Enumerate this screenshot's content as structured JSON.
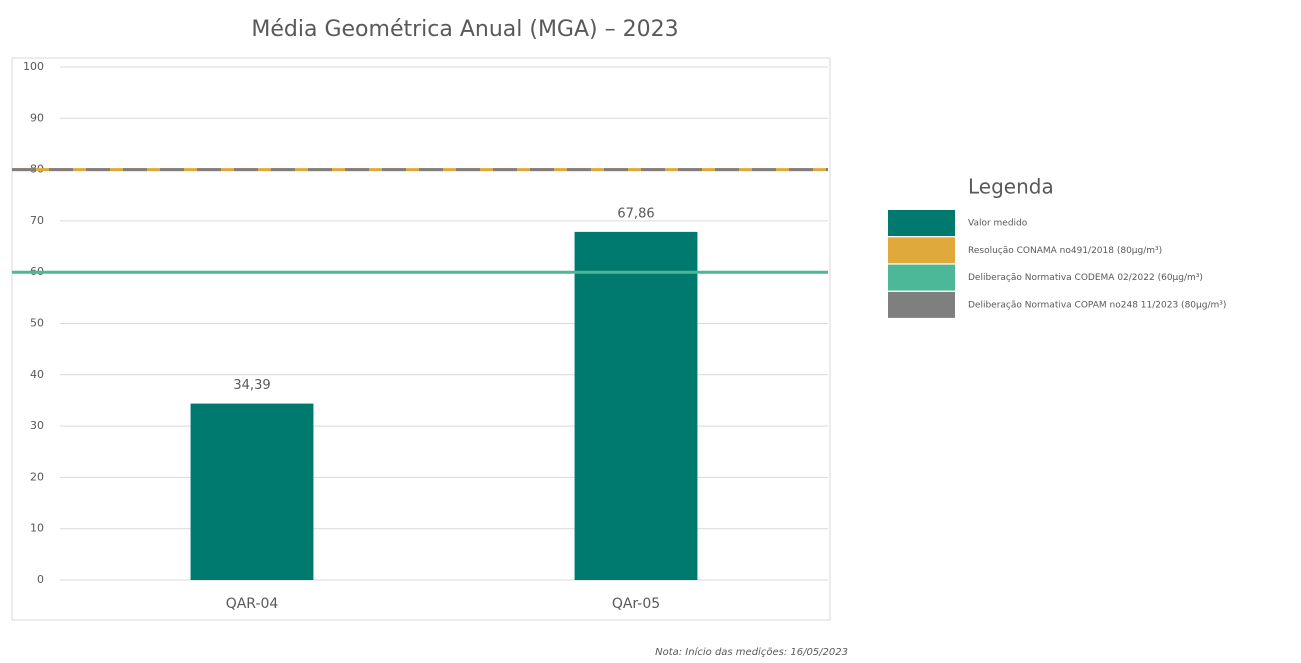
{
  "chart_data": {
    "type": "bar",
    "title": "Média Geométrica Anual (MGA) – 2023",
    "categories": [
      "QAR-04",
      "QAr-05"
    ],
    "series": [
      {
        "name": "Valor medido",
        "color": "#00796f",
        "values": [
          34.39,
          67.86
        ],
        "value_labels": [
          "34,39",
          "67,86"
        ]
      }
    ],
    "reference_lines": [
      {
        "name": "Resolução CONAMA no491/2018 (80µg/m³)",
        "value": 80,
        "color": "#e0a93b",
        "style": "solid"
      },
      {
        "name": "Deliberação Normativa CODEMA 02/2022 (60µg/m³)",
        "value": 60,
        "color": "#4db898",
        "style": "solid"
      },
      {
        "name": "Deliberação Normativa COPAM no248 11/2023 (80µg/m³)",
        "value": 80,
        "color": "#7f7f7f",
        "style": "dashed"
      }
    ],
    "ylim": [
      0,
      100
    ],
    "yticks": [
      0,
      10,
      20,
      30,
      40,
      50,
      60,
      70,
      80,
      90,
      100
    ],
    "grid": true,
    "legend_title": "Legenda",
    "note": "Nota: Início das medições: 16/05/2023"
  }
}
